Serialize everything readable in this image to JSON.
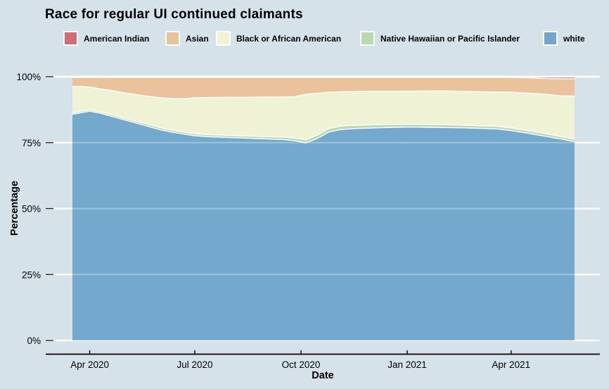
{
  "page": {
    "background": "#d6e2ea"
  },
  "header": {
    "title": "Race for regular UI continued claimants"
  },
  "legend": {
    "items": [
      {
        "label": "American Indian",
        "color": "#d46d73"
      },
      {
        "label": "Asian",
        "color": "#eac29a"
      },
      {
        "label": "Black or African American",
        "color": "#f1f3d5"
      },
      {
        "label": "Native Hawaiian or Pacific Islander",
        "color": "#b9d9b1"
      },
      {
        "label": "white",
        "color": "#71a6ca"
      }
    ]
  },
  "chart_data": {
    "type": "area",
    "stacked": true,
    "title": "Race for regular UI continued claimants",
    "xlabel": "Date",
    "ylabel": "Percentage",
    "ylim": [
      0,
      100
    ],
    "grid": {
      "color": "#ffffff",
      "axis_color": "#000000",
      "legend_position": "top"
    },
    "x_range": [
      "2020-03-17",
      "2021-05-26"
    ],
    "x_ticks": [
      {
        "date": "2020-04-01",
        "label": "Apr 2020"
      },
      {
        "date": "2020-07-01",
        "label": "Jul 2020"
      },
      {
        "date": "2020-10-01",
        "label": "Oct 2020"
      },
      {
        "date": "2021-01-01",
        "label": "Jan 2021"
      },
      {
        "date": "2021-04-01",
        "label": "Apr 2021"
      }
    ],
    "y_ticks": [
      {
        "value": 0,
        "label": "0%"
      },
      {
        "value": 25,
        "label": "25%"
      },
      {
        "value": 50,
        "label": "50%"
      },
      {
        "value": 75,
        "label": "75%"
      },
      {
        "value": 100,
        "label": "100%"
      }
    ],
    "x_dates": [
      "2020-03-17",
      "2020-03-24",
      "2020-04-01",
      "2020-04-11",
      "2020-04-21",
      "2020-05-01",
      "2020-05-11",
      "2020-05-21",
      "2020-06-01",
      "2020-06-11",
      "2020-06-21",
      "2020-07-01",
      "2020-07-15",
      "2020-08-01",
      "2020-08-15",
      "2020-09-01",
      "2020-09-15",
      "2020-09-25",
      "2020-10-05",
      "2020-10-15",
      "2020-10-25",
      "2020-11-05",
      "2020-11-20",
      "2020-12-05",
      "2020-12-20",
      "2021-01-05",
      "2021-01-20",
      "2021-02-05",
      "2021-02-20",
      "2021-03-05",
      "2021-03-20",
      "2021-04-01",
      "2021-04-15",
      "2021-05-01",
      "2021-05-15",
      "2021-05-26"
    ],
    "series": [
      {
        "name": "white",
        "color": "#71a6ca",
        "values": [
          85.7,
          86.3,
          86.9,
          86.0,
          84.8,
          83.6,
          82.4,
          81.2,
          79.9,
          79.0,
          78.3,
          77.6,
          77.2,
          76.9,
          76.7,
          76.4,
          76.2,
          75.8,
          74.9,
          76.5,
          79.0,
          80.0,
          80.4,
          80.6,
          80.8,
          80.9,
          80.8,
          80.7,
          80.6,
          80.4,
          80.2,
          79.6,
          78.6,
          77.4,
          76.3,
          75.4
        ]
      },
      {
        "name": "Native Hawaiian or Pacific Islander",
        "color": "#b9d9b1",
        "values": [
          0.6,
          0.6,
          0.6,
          0.6,
          0.7,
          0.7,
          0.7,
          0.8,
          0.8,
          0.8,
          0.8,
          0.8,
          0.8,
          0.8,
          0.8,
          0.9,
          0.9,
          1.0,
          1.2,
          1.3,
          1.3,
          1.3,
          1.2,
          1.2,
          1.1,
          1.1,
          1.1,
          1.1,
          1.0,
          1.0,
          1.0,
          1.0,
          1.0,
          1.0,
          0.9,
          0.9
        ]
      },
      {
        "name": "Black or African American",
        "color": "#f1f3d5",
        "values": [
          9.9,
          9.4,
          8.5,
          8.7,
          9.2,
          9.6,
          10.1,
          10.6,
          11.3,
          11.9,
          12.5,
          13.6,
          14.1,
          14.5,
          14.7,
          15.0,
          15.2,
          15.6,
          17.2,
          15.9,
          13.8,
          13.0,
          12.8,
          12.7,
          12.6,
          12.5,
          12.7,
          12.8,
          12.8,
          12.9,
          13.0,
          13.5,
          14.2,
          14.9,
          15.5,
          16.4
        ]
      },
      {
        "name": "Asian",
        "color": "#eac29a",
        "values": [
          3.5,
          3.4,
          3.7,
          4.4,
          5.0,
          5.8,
          6.5,
          7.1,
          7.7,
          8.0,
          8.1,
          7.7,
          7.6,
          7.5,
          7.5,
          7.4,
          7.4,
          7.3,
          6.4,
          6.0,
          5.6,
          5.4,
          5.3,
          5.2,
          5.2,
          5.2,
          5.1,
          5.1,
          5.3,
          5.4,
          5.5,
          5.6,
          5.8,
          6.0,
          6.5,
          6.5
        ]
      },
      {
        "name": "American Indian",
        "color": "#d46d73",
        "values": [
          0.3,
          0.3,
          0.3,
          0.3,
          0.3,
          0.3,
          0.3,
          0.3,
          0.3,
          0.3,
          0.3,
          0.3,
          0.3,
          0.3,
          0.3,
          0.3,
          0.3,
          0.3,
          0.3,
          0.3,
          0.3,
          0.3,
          0.3,
          0.3,
          0.3,
          0.3,
          0.3,
          0.3,
          0.3,
          0.3,
          0.3,
          0.3,
          0.4,
          0.7,
          0.8,
          0.8
        ]
      }
    ]
  }
}
